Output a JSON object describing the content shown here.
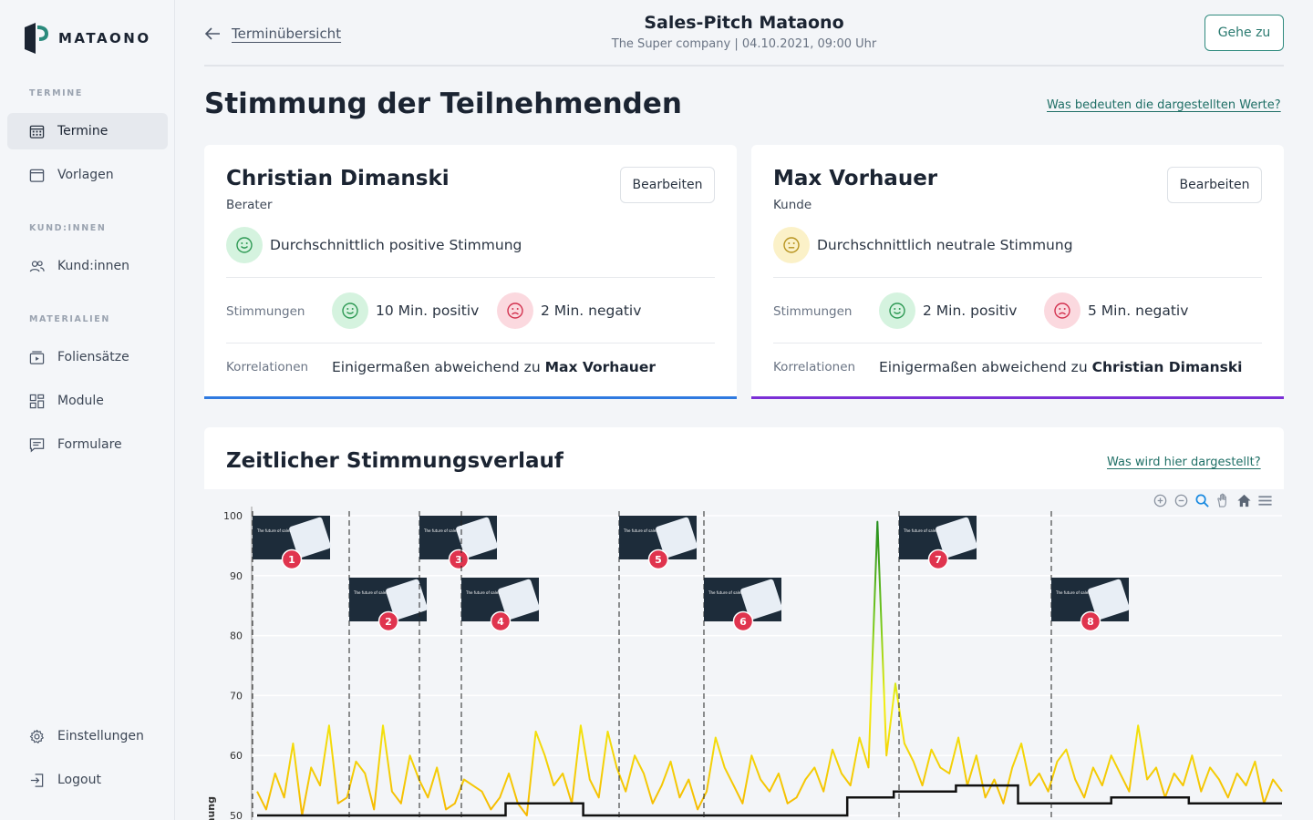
{
  "brand": {
    "name": "MATAONO"
  },
  "sidebar": {
    "sections": [
      "TERMINE",
      "KUND:INNEN",
      "MATERIALIEN"
    ],
    "items": [
      {
        "label": "Termine",
        "icon": "calendar-grid-icon",
        "active": true
      },
      {
        "label": "Vorlagen",
        "icon": "calendar-icon"
      },
      {
        "label": "Kund:innen",
        "icon": "users-icon"
      },
      {
        "label": "Foliensätze",
        "icon": "slides-icon"
      },
      {
        "label": "Module",
        "icon": "modules-icon"
      },
      {
        "label": "Formulare",
        "icon": "form-icon"
      }
    ],
    "bottom": [
      {
        "label": "Einstellungen",
        "icon": "gear-icon"
      },
      {
        "label": "Logout",
        "icon": "logout-icon"
      }
    ]
  },
  "header": {
    "back_label": "Terminübersicht",
    "title": "Sales-Pitch Mataono",
    "subtitle": "The Super company | 04.10.2021, 09:00 Uhr",
    "goto_label": "Gehe zu"
  },
  "page": {
    "title": "Stimmung der Teilnehmenden",
    "help_link": "Was bedeuten die dargestellten Werte?"
  },
  "participants": [
    {
      "name": "Christian Dimanski",
      "role": "Berater",
      "edit_label": "Bearbeiten",
      "mood_text": "Durchschnittlich positive Stimmung",
      "mood": "positive",
      "moods_label": "Stimmungen",
      "positive_text": "10 Min. positiv",
      "negative_text": "2 Min. negativ",
      "corr_label": "Korrelationen",
      "corr_prefix": "Einigermaßen abweichend zu",
      "corr_name": "Max Vorhauer",
      "accent": "#2f7ae0"
    },
    {
      "name": "Max Vorhauer",
      "role": "Kunde",
      "edit_label": "Bearbeiten",
      "mood_text": "Durchschnittlich neutrale Stimmung",
      "mood": "neutral",
      "moods_label": "Stimmungen",
      "positive_text": "2 Min. positiv",
      "negative_text": "5 Min. negativ",
      "corr_label": "Korrelationen",
      "corr_prefix": "Einigermaßen abweichend zu",
      "corr_name": "Christian Dimanski",
      "accent": "#7b2fd6"
    }
  ],
  "chart_section": {
    "title": "Zeitlicher Stimmungsverlauf",
    "help_link": "Was wird hier dargestellt?",
    "toolbar": [
      "zoom-in-icon",
      "zoom-out-icon",
      "magnifier-icon",
      "pan-hand-icon",
      "home-icon",
      "menu-icon"
    ]
  },
  "chart_data": {
    "type": "line",
    "ylabel": "mung",
    "ylim": [
      50,
      100
    ],
    "yticks": [
      100,
      90,
      80,
      70,
      60,
      50
    ],
    "slides": [
      {
        "number": "1",
        "caption": "The future of sales"
      },
      {
        "number": "2",
        "caption": "The future of sales"
      },
      {
        "number": "3",
        "caption": "The future of sales"
      },
      {
        "number": "4",
        "caption": "The future of sales"
      },
      {
        "number": "5",
        "caption": "The future of sales"
      },
      {
        "number": "6",
        "caption": "The future of sales"
      },
      {
        "number": "7",
        "caption": "The future of sales"
      },
      {
        "number": "8",
        "caption": "The future of sales"
      }
    ],
    "series": [
      {
        "values": [
          54,
          51,
          57,
          53,
          62,
          50,
          58,
          55,
          65,
          52,
          53,
          59,
          57,
          51,
          65,
          54,
          52,
          60,
          56,
          53,
          58,
          51,
          52,
          56,
          55,
          54,
          51,
          53,
          57,
          52,
          50,
          64,
          60,
          55,
          57,
          52,
          65,
          56,
          53,
          64,
          58,
          54,
          60,
          57,
          52,
          55,
          59,
          53,
          56,
          51,
          54,
          63,
          58,
          55,
          52,
          60,
          56,
          54,
          57,
          52,
          53,
          56,
          58,
          54,
          61,
          57,
          55,
          63,
          58,
          99,
          60,
          72,
          62,
          59,
          55,
          61,
          58,
          57,
          63,
          55,
          60,
          53,
          56,
          52,
          58,
          62,
          55,
          57,
          54,
          59,
          61,
          56,
          53,
          58,
          55,
          60,
          57,
          54,
          65,
          56,
          58,
          53,
          57,
          55,
          60,
          54,
          58,
          56,
          53,
          57,
          55,
          59,
          52,
          56,
          54
        ]
      },
      {
        "values": [
          50,
          50,
          50,
          50,
          50,
          50,
          50,
          50,
          50,
          50,
          50,
          50,
          50,
          50,
          50,
          50,
          52,
          52,
          52,
          52,
          52,
          50,
          50,
          50,
          50,
          50,
          50,
          50,
          50,
          50,
          50,
          50,
          50,
          50,
          50,
          50,
          50,
          50,
          53,
          53,
          53,
          54,
          54,
          54,
          54,
          55,
          55,
          55,
          55,
          52,
          52,
          52,
          52,
          52,
          52,
          53,
          53,
          53,
          53,
          53,
          52,
          52,
          52,
          52,
          52,
          52,
          52
        ]
      }
    ]
  }
}
